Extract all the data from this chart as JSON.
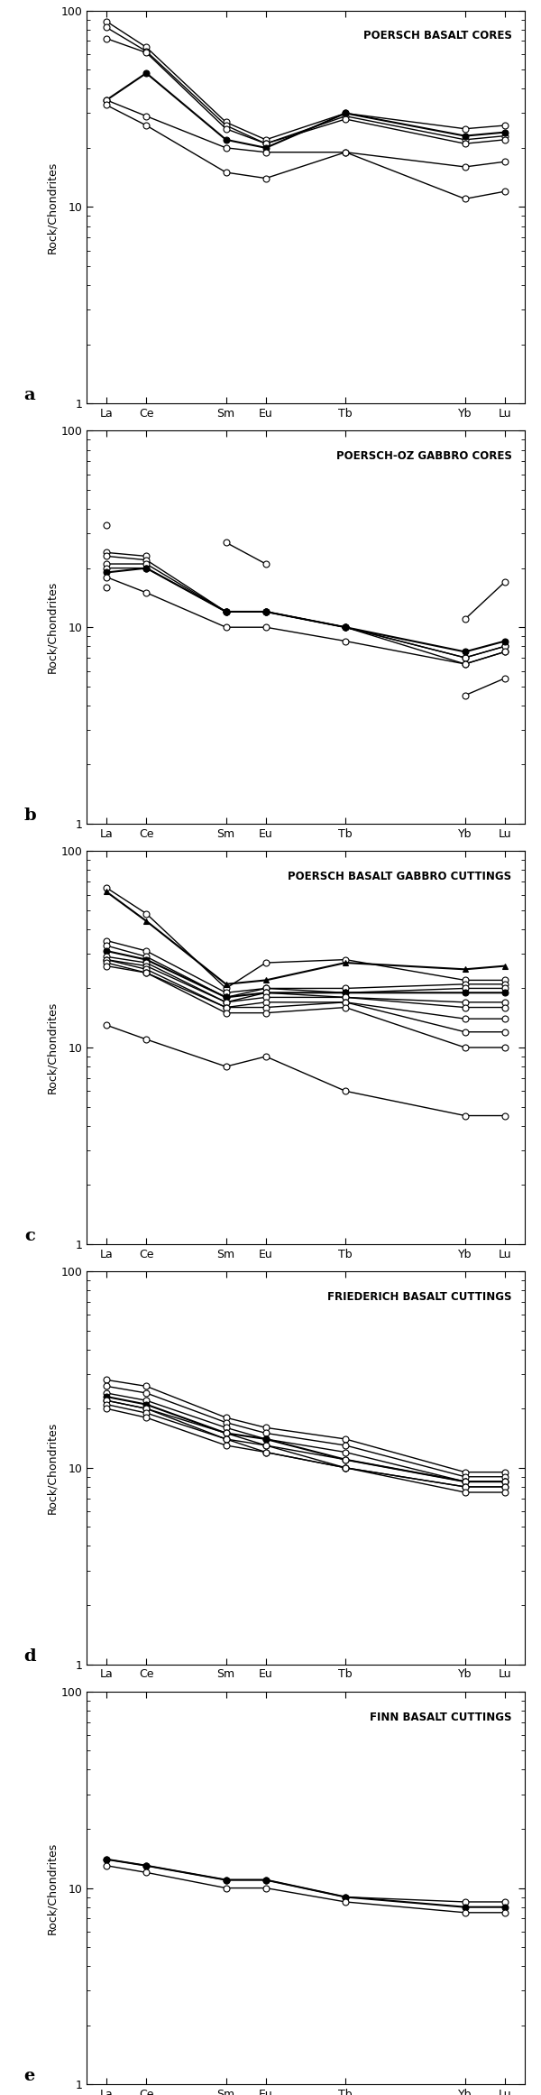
{
  "x_labels": [
    "La",
    "Ce",
    "Sm",
    "Eu",
    "Tb",
    "Yb",
    "Lu"
  ],
  "x_positions": [
    0,
    1,
    3,
    4,
    6,
    9,
    10
  ],
  "panels": [
    {
      "title": "POERSCH BASALT CORES",
      "label": "a",
      "series": [
        {
          "y": [
            88,
            65,
            27,
            22,
            30,
            25,
            26
          ],
          "marker": "o",
          "filled": false,
          "lw": 1.0
        },
        {
          "y": [
            82,
            62,
            26,
            21,
            29,
            22,
            23
          ],
          "marker": "o",
          "filled": false,
          "lw": 1.0
        },
        {
          "y": [
            72,
            61,
            25,
            21,
            28,
            21,
            22
          ],
          "marker": "o",
          "filled": false,
          "lw": 1.0
        },
        {
          "y": [
            35,
            48,
            22,
            20,
            30,
            23,
            24
          ],
          "marker": "o",
          "filled": true,
          "lw": 1.5
        },
        {
          "y": [
            35,
            29,
            20,
            19,
            19,
            16,
            17
          ],
          "marker": "o",
          "filled": false,
          "lw": 1.0
        },
        {
          "y": [
            33,
            26,
            15,
            14,
            19,
            11,
            12
          ],
          "marker": "o",
          "filled": false,
          "lw": 1.0
        }
      ]
    },
    {
      "title": "POERSCH-OZ GABBRO CORES",
      "label": "b",
      "series": [
        {
          "y": [
            33,
            null,
            27,
            21,
            null,
            11,
            17
          ],
          "marker": "o",
          "filled": false,
          "lw": 1.0
        },
        {
          "y": [
            24,
            23,
            null,
            null,
            null,
            null,
            null
          ],
          "marker": "o",
          "filled": false,
          "lw": 1.0
        },
        {
          "y": [
            23,
            22,
            12,
            12,
            10,
            6.5,
            7.5
          ],
          "marker": "o",
          "filled": false,
          "lw": 1.0
        },
        {
          "y": [
            21,
            21,
            12,
            12,
            10,
            7,
            8
          ],
          "marker": "o",
          "filled": false,
          "lw": 1.0
        },
        {
          "y": [
            20,
            20,
            12,
            12,
            10,
            7,
            8
          ],
          "marker": "o",
          "filled": false,
          "lw": 1.0
        },
        {
          "y": [
            19,
            20,
            12,
            12,
            10,
            7.5,
            8.5
          ],
          "marker": "o",
          "filled": true,
          "lw": 1.5
        },
        {
          "y": [
            18,
            15,
            10,
            10,
            8.5,
            6.5,
            7.5
          ],
          "marker": "o",
          "filled": false,
          "lw": 1.0
        },
        {
          "y": [
            16,
            null,
            null,
            null,
            null,
            4.5,
            5.5
          ],
          "marker": "o",
          "filled": false,
          "lw": 1.0
        }
      ]
    },
    {
      "title": "POERSCH BASALT GABBRO CUTTINGS",
      "label": "c",
      "series": [
        {
          "y": [
            65,
            48,
            20,
            27,
            28,
            22,
            22
          ],
          "marker": "o",
          "filled": false,
          "lw": 1.0
        },
        {
          "y": [
            62,
            44,
            21,
            22,
            27,
            25,
            26
          ],
          "marker": "^",
          "filled": true,
          "lw": 1.5
        },
        {
          "y": [
            35,
            31,
            19,
            20,
            20,
            21,
            21
          ],
          "marker": "o",
          "filled": false,
          "lw": 1.0
        },
        {
          "y": [
            33,
            29,
            18,
            20,
            19,
            20,
            20
          ],
          "marker": "o",
          "filled": false,
          "lw": 1.0
        },
        {
          "y": [
            31,
            28,
            18,
            19,
            19,
            19,
            19
          ],
          "marker": "o",
          "filled": true,
          "lw": 1.5
        },
        {
          "y": [
            29,
            27,
            17,
            19,
            18,
            17,
            17
          ],
          "marker": "o",
          "filled": false,
          "lw": 1.0
        },
        {
          "y": [
            28,
            26,
            17,
            18,
            18,
            16,
            16
          ],
          "marker": "o",
          "filled": false,
          "lw": 1.0
        },
        {
          "y": [
            28,
            25,
            16,
            17,
            17,
            14,
            14
          ],
          "marker": "o",
          "filled": false,
          "lw": 1.0
        },
        {
          "y": [
            27,
            24,
            16,
            16,
            17,
            12,
            12
          ],
          "marker": "o",
          "filled": false,
          "lw": 1.0
        },
        {
          "y": [
            26,
            24,
            15,
            15,
            16,
            10,
            10
          ],
          "marker": "o",
          "filled": false,
          "lw": 1.0
        },
        {
          "y": [
            13,
            11,
            8,
            9,
            6,
            4.5,
            4.5
          ],
          "marker": "o",
          "filled": false,
          "lw": 1.0
        }
      ]
    },
    {
      "title": "FRIEDERICH BASALT CUTTINGS",
      "label": "d",
      "series": [
        {
          "y": [
            28,
            26,
            18,
            16,
            14,
            9.5,
            9.5
          ],
          "marker": "o",
          "filled": false,
          "lw": 1.0
        },
        {
          "y": [
            26,
            24,
            17,
            15,
            13,
            9,
            9
          ],
          "marker": "o",
          "filled": false,
          "lw": 1.0
        },
        {
          "y": [
            24,
            22,
            16,
            14,
            12,
            8.5,
            8.5
          ],
          "marker": "o",
          "filled": false,
          "lw": 1.0
        },
        {
          "y": [
            23,
            21,
            15,
            14,
            11,
            8.5,
            8.5
          ],
          "marker": "o",
          "filled": true,
          "lw": 1.5
        },
        {
          "y": [
            22,
            20,
            15,
            13,
            11,
            8.5,
            8.5
          ],
          "marker": "o",
          "filled": false,
          "lw": 1.0
        },
        {
          "y": [
            22,
            20,
            14,
            13,
            10,
            8,
            8
          ],
          "marker": "o",
          "filled": false,
          "lw": 1.0
        },
        {
          "y": [
            21,
            19,
            14,
            12,
            10,
            8,
            8
          ],
          "marker": "o",
          "filled": false,
          "lw": 1.0
        },
        {
          "y": [
            20,
            18,
            13,
            12,
            10,
            7.5,
            7.5
          ],
          "marker": "o",
          "filled": false,
          "lw": 1.0
        }
      ]
    },
    {
      "title": "FINN BASALT CUTTINGS",
      "label": "e",
      "series": [
        {
          "y": [
            14,
            13,
            11,
            11,
            9,
            8.5,
            8.5
          ],
          "marker": "o",
          "filled": false,
          "lw": 1.0
        },
        {
          "y": [
            14,
            13,
            11,
            11,
            9,
            8,
            8
          ],
          "marker": "o",
          "filled": true,
          "lw": 1.5
        },
        {
          "y": [
            13,
            12,
            10,
            10,
            8.5,
            7.5,
            7.5
          ],
          "marker": "o",
          "filled": false,
          "lw": 1.0
        }
      ]
    }
  ],
  "ylim": [
    1,
    100
  ],
  "bg_color": "#ffffff",
  "line_color": "#000000",
  "open_fc": "#ffffff",
  "filled_fc": "#000000",
  "marker_ec": "#000000",
  "marker_size": 5,
  "ylabel": "Rock/Chondrites"
}
